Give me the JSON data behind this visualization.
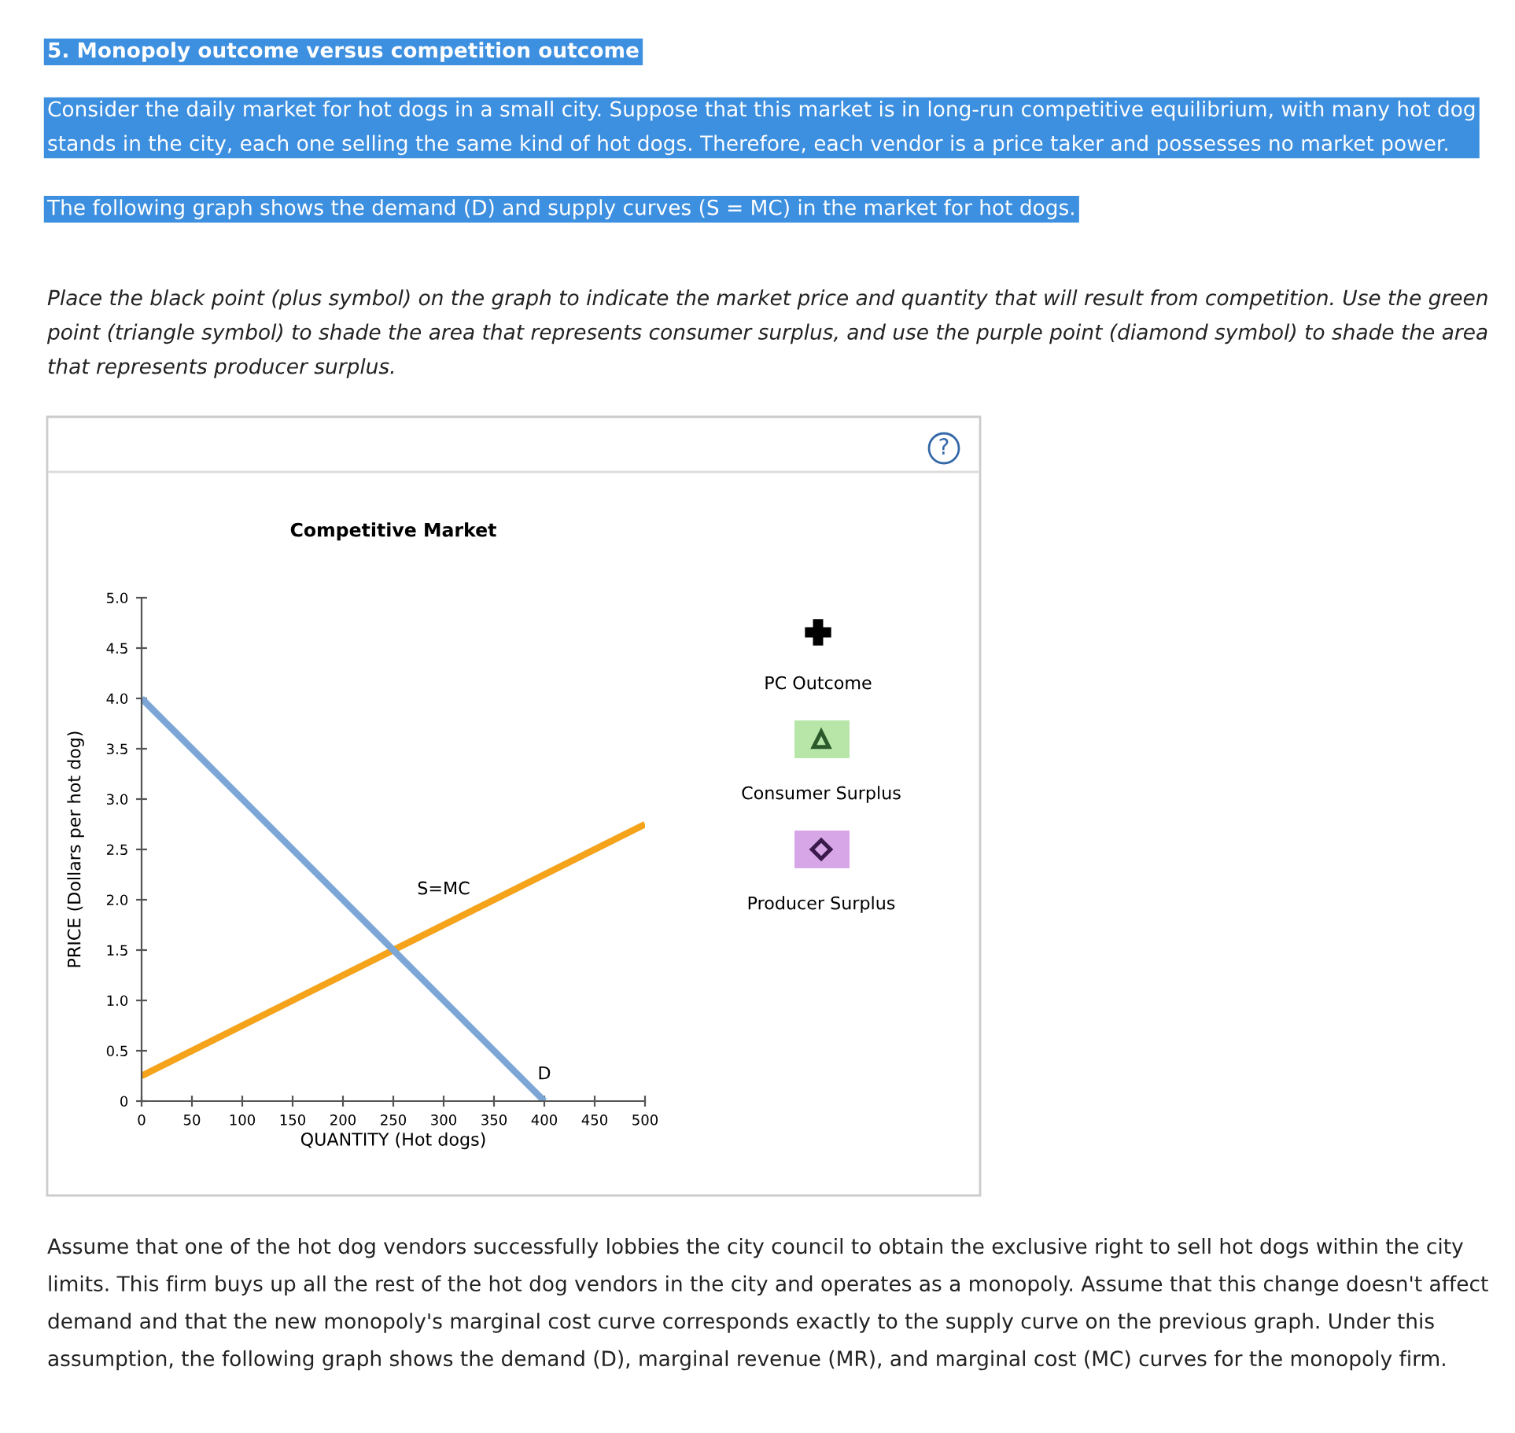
{
  "chart_data": {
    "type": "line",
    "title": "Competitive Market",
    "xlabel": "QUANTITY (Hot dogs)",
    "ylabel": "PRICE (Dollars per hot dog)",
    "series": [
      {
        "name": "S=MC",
        "color": "#f5a31b",
        "x": [
          0,
          500
        ],
        "values": [
          0.25,
          2.75
        ]
      },
      {
        "name": "D",
        "color": "#7ba6d6",
        "x": [
          0,
          400
        ],
        "values": [
          4.0,
          0
        ]
      }
    ],
    "xlim": [
      0,
      500
    ],
    "xticks": [
      0,
      50,
      100,
      150,
      200,
      250,
      300,
      350,
      400,
      450,
      500
    ],
    "ylim": [
      0,
      5
    ],
    "yticks": [
      0,
      0.5,
      {
        "value": 1,
        "label": "1.0"
      },
      1.5,
      {
        "value": 2,
        "label": "2.0"
      },
      2.5,
      {
        "value": 3,
        "label": "3.0"
      },
      3.5,
      {
        "value": 4,
        "label": "4.0"
      },
      4.5,
      {
        "value": 5,
        "label": "5.0"
      }
    ],
    "grid": false,
    "legend": false,
    "marker": "none",
    "line_style": "solid",
    "annotations": [
      "5. Monopoly outcome versus competition outcome",
      "Consider the daily market for hot dogs in a small city. Suppose that this market is in long-run competitive equilibrium, with many hot dog stands in the city, each one selling the same kind of hot dogs. Therefore, each vendor is a price taker and possesses no market power.",
      "The following graph shows the demand (D) and supply curves (S = MC) in the market for hot dogs.",
      "Place the black point (plus symbol) on the graph to indicate the market price and quantity that will result from competition. Use the green point (triangle symbol) to shade the area that represents consumer surplus, and use the purple point (diamond symbol) to shade the area that represents producer surplus.",
      "PC Outcome",
      "Consumer Surplus",
      "Producer Surplus",
      "?",
      "Assume that one of the hot dog vendors successfully lobbies the city council to obtain the exclusive right to sell hot dogs within the city limits. This firm buys up all the rest of the hot dog vendors in the city and operates as a monopoly. Assume that this change doesn't affect demand and that the new monopoly's marginal cost curve corresponds exactly to the supply curve on the previous graph. Under this assumption, the following graph shows the demand (D), marginal revenue (MR), and marginal cost (MC) curves for the monopoly firm."
    ]
  }
}
